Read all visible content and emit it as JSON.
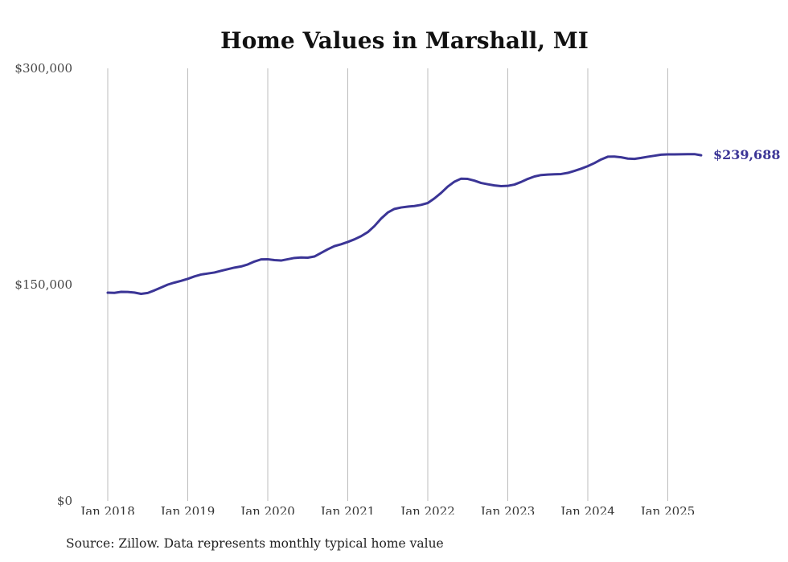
{
  "chart_data": {
    "type": "line",
    "title": "Home Values in Marshall, MI",
    "xlabel": "",
    "ylabel": "",
    "source": "Source: Zillow. Data represents monthly typical home value",
    "y_ticks": [
      "$0",
      "$150,000",
      "$300,000"
    ],
    "y_tick_values": [
      0,
      150000,
      300000
    ],
    "ylim": [
      0,
      300000
    ],
    "x_ticks": [
      "Jan 2018",
      "Jan 2019",
      "Jan 2020",
      "Jan 2021",
      "Jan 2022",
      "Jan 2023",
      "Jan 2024",
      "Jan 2025"
    ],
    "x_tick_dates": [
      "2018-01",
      "2019-01",
      "2020-01",
      "2021-01",
      "2022-01",
      "2023-01",
      "2024-01",
      "2025-01"
    ],
    "xlim": [
      "2018-01",
      "2025-06"
    ],
    "grid": "vertical",
    "line_color": "#3b3596",
    "end_label": "$239,688",
    "series": [
      {
        "x": [
          "2018-01",
          "2018-02",
          "2018-03",
          "2018-04",
          "2018-05",
          "2018-06",
          "2018-07",
          "2018-08",
          "2018-09",
          "2018-10",
          "2018-11",
          "2018-12",
          "2019-01",
          "2019-02",
          "2019-03",
          "2019-04",
          "2019-05",
          "2019-06",
          "2019-07",
          "2019-08",
          "2019-09",
          "2019-10",
          "2019-11",
          "2019-12",
          "2020-01",
          "2020-02",
          "2020-03",
          "2020-04",
          "2020-05",
          "2020-06",
          "2020-07",
          "2020-08",
          "2020-09",
          "2020-10",
          "2020-11",
          "2020-12",
          "2021-01",
          "2021-02",
          "2021-03",
          "2021-04",
          "2021-05",
          "2021-06",
          "2021-07",
          "2021-08",
          "2021-09",
          "2021-10",
          "2021-11",
          "2021-12",
          "2022-01",
          "2022-02",
          "2022-03",
          "2022-04",
          "2022-05",
          "2022-06",
          "2022-07",
          "2022-08",
          "2022-09",
          "2022-10",
          "2022-11",
          "2022-12",
          "2023-01",
          "2023-02",
          "2023-03",
          "2023-04",
          "2023-05",
          "2023-06",
          "2023-07",
          "2023-08",
          "2023-09",
          "2023-10",
          "2023-11",
          "2023-12",
          "2024-01",
          "2024-02",
          "2024-03",
          "2024-04",
          "2024-05",
          "2024-06",
          "2024-07",
          "2024-08",
          "2024-09",
          "2024-10",
          "2024-11",
          "2024-12",
          "2025-01",
          "2025-02",
          "2025-03",
          "2025-04",
          "2025-05",
          "2025-06"
        ],
        "values": [
          144400,
          144300,
          145000,
          144900,
          144500,
          143600,
          144200,
          146000,
          148000,
          150000,
          151400,
          152600,
          154000,
          155700,
          157000,
          157700,
          158400,
          159600,
          160700,
          161800,
          162600,
          164000,
          166000,
          167500,
          167600,
          167000,
          166700,
          167600,
          168500,
          168800,
          168700,
          169500,
          172000,
          174500,
          176700,
          178000,
          179600,
          181400,
          183600,
          186400,
          190600,
          195800,
          200000,
          202500,
          203500,
          204100,
          204500,
          205300,
          206600,
          209800,
          213600,
          218000,
          221400,
          223500,
          223300,
          222100,
          220500,
          219600,
          218800,
          218300,
          218500,
          219400,
          221200,
          223300,
          225000,
          226000,
          226300,
          226500,
          226700,
          227500,
          228900,
          230400,
          232200,
          234300,
          236800,
          238700,
          238800,
          238300,
          237400,
          237200,
          237900,
          238700,
          239400,
          240100,
          240300,
          240300,
          240400,
          240500,
          240500,
          239688
        ]
      }
    ]
  }
}
